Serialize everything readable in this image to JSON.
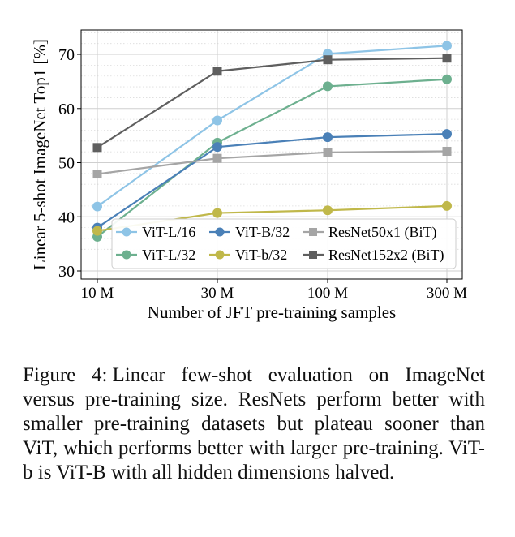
{
  "chart_data": {
    "type": "line",
    "categories": [
      "10 M",
      "30 M",
      "100 M",
      "300 M"
    ],
    "xlabel": "Number of JFT pre-training samples",
    "ylabel": "Linear 5-shot ImageNet Top1 [%]",
    "ylim": [
      28.5,
      74.5
    ],
    "yticks": [
      30,
      40,
      50,
      60,
      70
    ],
    "grid": true,
    "legend_position": "lower-right",
    "series": [
      {
        "name": "ViT-L/16",
        "color": "#8ec4e6",
        "marker": "circle",
        "values": [
          41.9,
          57.8,
          70.1,
          71.6
        ]
      },
      {
        "name": "ViT-L/32",
        "color": "#6db08f",
        "marker": "circle",
        "values": [
          36.3,
          53.7,
          64.1,
          65.4
        ]
      },
      {
        "name": "ViT-B/32",
        "color": "#4a80b7",
        "marker": "circle",
        "values": [
          38.0,
          52.9,
          54.7,
          55.3
        ]
      },
      {
        "name": "ViT-b/32",
        "color": "#c0b84a",
        "marker": "circle",
        "values": [
          37.4,
          40.7,
          41.2,
          42.0
        ]
      },
      {
        "name": "ResNet50x1 (BiT)",
        "color": "#a5a5a5",
        "marker": "square",
        "values": [
          47.9,
          50.8,
          51.9,
          52.1
        ]
      },
      {
        "name": "ResNet152x2 (BiT)",
        "color": "#5f5f5f",
        "marker": "square",
        "values": [
          52.8,
          66.9,
          69.0,
          69.3
        ]
      }
    ]
  },
  "caption": {
    "label": "Figure 4:",
    "text": "Linear few-shot evaluation on ImageNet versus pre-training size. ResNets perform better with smaller pre-training datasets but plateau sooner than ViT, which performs better with larger pre-training. ViT-b is ViT-B with all hidden dimensions halved."
  }
}
